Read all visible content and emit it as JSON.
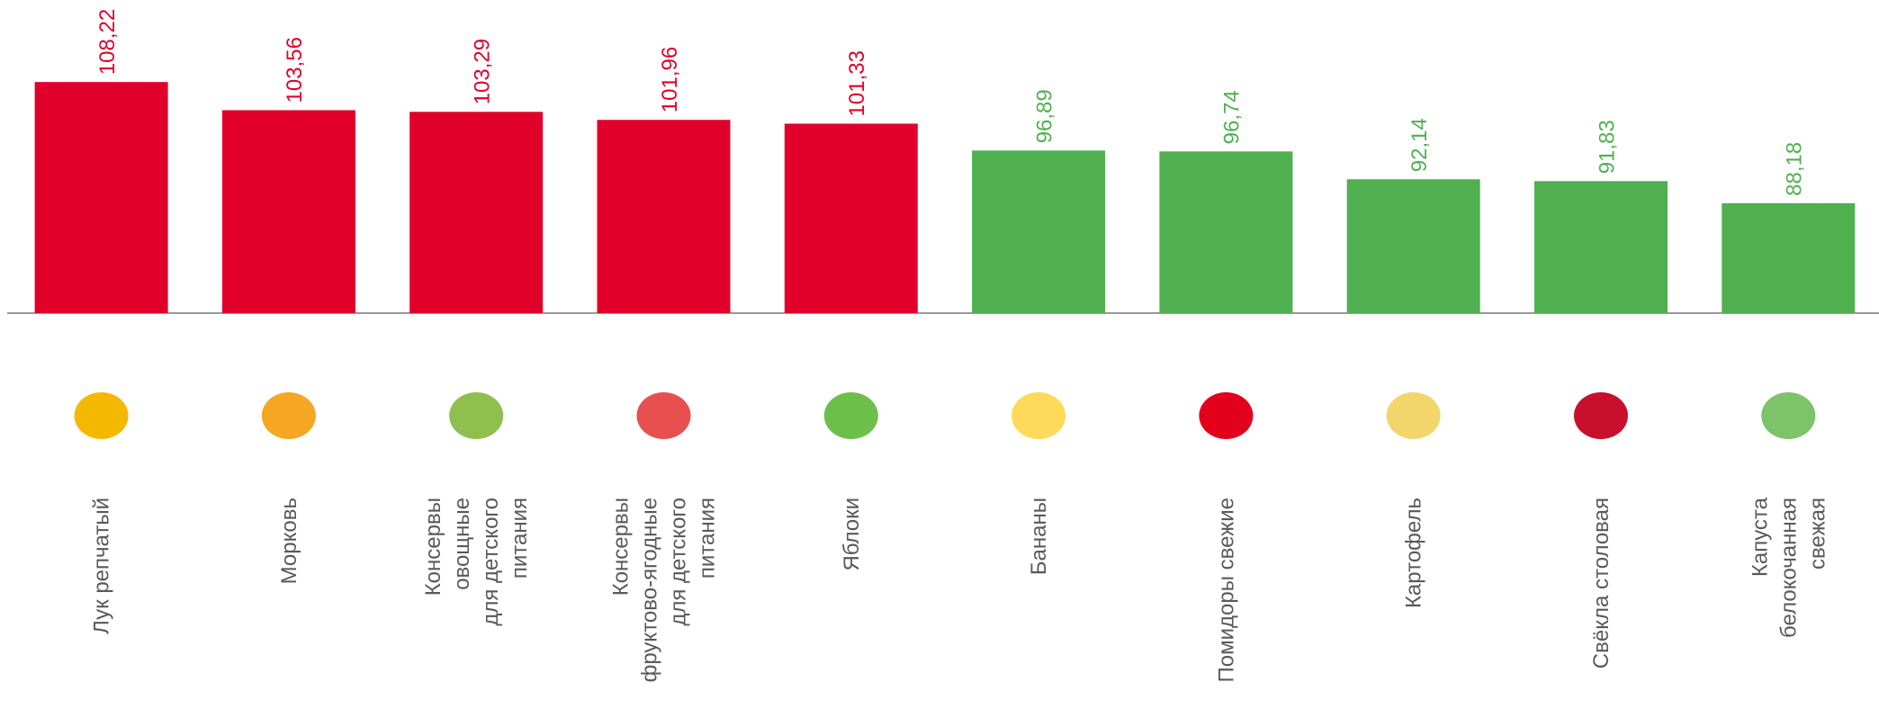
{
  "chart_data": {
    "type": "bar",
    "categories": [
      [
        "Лук репчатый"
      ],
      [
        "Морковь"
      ],
      [
        "Консервы",
        "овощные",
        "для детского",
        "питания"
      ],
      [
        "Консервы",
        "фруктово-ягодные",
        "для детского",
        "питания"
      ],
      [
        "Яблоки"
      ],
      [
        "Бананы"
      ],
      [
        "Помидоры свежие"
      ],
      [
        "Картофель"
      ],
      [
        "Свёкла столовая"
      ],
      [
        "Капуста",
        "белокочанная",
        "свежая"
      ]
    ],
    "values": [
      108.22,
      103.56,
      103.29,
      101.96,
      101.33,
      96.89,
      96.74,
      92.14,
      91.83,
      88.18
    ],
    "value_labels": [
      "108,22",
      "103,56",
      "103,29",
      "101,96",
      "101,33",
      "96,89",
      "96,74",
      "92,14",
      "91,83",
      "88,18"
    ],
    "colors": [
      "#e0002a",
      "#e0002a",
      "#e0002a",
      "#e0002a",
      "#e0002a",
      "#50b050",
      "#50b050",
      "#50b050",
      "#50b050",
      "#50b050"
    ],
    "ylim": [
      70,
      120
    ]
  }
}
